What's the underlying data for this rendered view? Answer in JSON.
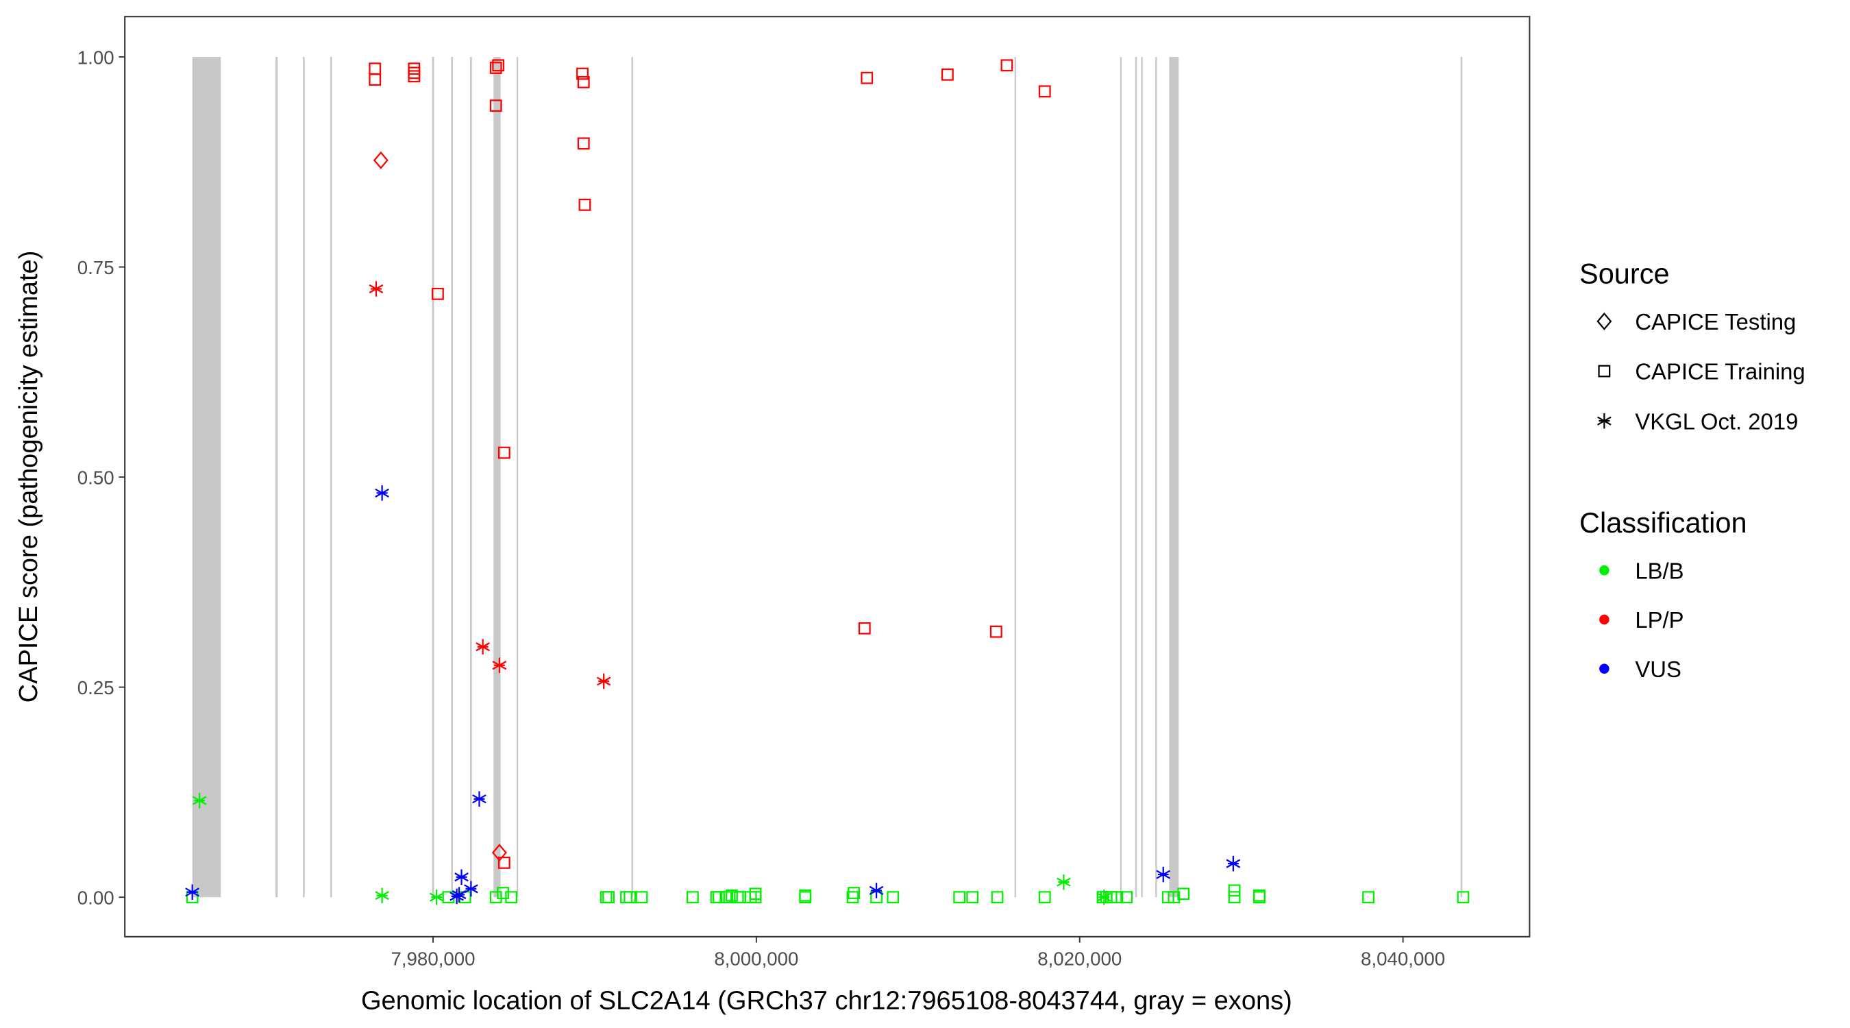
{
  "chart_data": {
    "type": "scatter",
    "xlabel": "Genomic location of SLC2A14 (GRCh37 chr12:7965108-8043744, gray = exons)",
    "ylabel": "CAPICE score (pathogenicity estimate)",
    "xlim": [
      7960934,
      8047830
    ],
    "ylim": [
      -0.047,
      1.048
    ],
    "x_ticks": [
      7980000,
      8000000,
      8020000,
      8040000
    ],
    "x_tick_labels": [
      "7,980,000",
      "8,000,000",
      "8,020,000",
      "8,040,000"
    ],
    "y_ticks": [
      0,
      0.25,
      0.5,
      0.75,
      1.0
    ],
    "y_tick_labels": [
      "0.00",
      "0.25",
      "0.50",
      "0.75",
      "1.00"
    ],
    "grid": false,
    "legend_placement": "right",
    "legend": {
      "source_title": "Source",
      "sources": [
        {
          "key": "testing",
          "label": "CAPICE Testing",
          "shape": "diamond"
        },
        {
          "key": "training",
          "label": "CAPICE Training",
          "shape": "square"
        },
        {
          "key": "vkgl",
          "label": "VKGL Oct. 2019",
          "shape": "asterisk"
        }
      ],
      "class_title": "Classification",
      "classes": [
        {
          "key": "LB/B",
          "label": "LB/B",
          "color": "#00ee00"
        },
        {
          "key": "LP/P",
          "label": "LP/P",
          "color": "#ff0000"
        },
        {
          "key": "VUS",
          "label": "VUS",
          "color": "#0000ff"
        }
      ]
    },
    "exons": [
      [
        7965108,
        7966874
      ],
      [
        7970250,
        7970390
      ],
      [
        7971950,
        7972060
      ],
      [
        7973640,
        7973750
      ],
      [
        7979940,
        7980060
      ],
      [
        7981120,
        7981230
      ],
      [
        7982290,
        7982400
      ],
      [
        7983740,
        7984180
      ],
      [
        7985170,
        7985240
      ],
      [
        7992270,
        7992370
      ],
      [
        8015970,
        8016040
      ],
      [
        8022500,
        8022560
      ],
      [
        8023430,
        8023540
      ],
      [
        8023800,
        8023900
      ],
      [
        8024680,
        8024780
      ],
      [
        8025538,
        8026125
      ],
      [
        8043560,
        8043670
      ]
    ],
    "points": [
      [
        7976407,
        0.986,
        "training",
        "LP/P"
      ],
      [
        7976407,
        0.973,
        "training",
        "LP/P"
      ],
      [
        7978827,
        0.986,
        "training",
        "LP/P"
      ],
      [
        7978827,
        0.981,
        "training",
        "LP/P"
      ],
      [
        7978827,
        0.977,
        "training",
        "LP/P"
      ],
      [
        7983887,
        0.987,
        "training",
        "LP/P"
      ],
      [
        7984033,
        0.99,
        "training",
        "LP/P"
      ],
      [
        7983887,
        0.942,
        "training",
        "LP/P"
      ],
      [
        7989240,
        0.98,
        "training",
        "LP/P"
      ],
      [
        7989313,
        0.97,
        "training",
        "LP/P"
      ],
      [
        7989313,
        0.897,
        "training",
        "LP/P"
      ],
      [
        7989386,
        0.824,
        "training",
        "LP/P"
      ],
      [
        7980293,
        0.718,
        "training",
        "LP/P"
      ],
      [
        7984400,
        0.529,
        "training",
        "LP/P"
      ],
      [
        7984400,
        0.041,
        "training",
        "LP/P"
      ],
      [
        8006839,
        0.975,
        "training",
        "LP/P"
      ],
      [
        8011826,
        0.979,
        "training",
        "LP/P"
      ],
      [
        8015493,
        0.99,
        "training",
        "LP/P"
      ],
      [
        8017839,
        0.959,
        "training",
        "LP/P"
      ],
      [
        8006693,
        0.32,
        "training",
        "LP/P"
      ],
      [
        8014832,
        0.316,
        "training",
        "LP/P"
      ],
      [
        7976773,
        0.877,
        "testing",
        "LP/P"
      ],
      [
        7984107,
        0.053,
        "testing",
        "LP/P"
      ],
      [
        7976480,
        0.724,
        "vkgl",
        "LP/P"
      ],
      [
        7983080,
        0.298,
        "vkgl",
        "LP/P"
      ],
      [
        7984107,
        0.276,
        "vkgl",
        "LP/P"
      ],
      [
        7990560,
        0.257,
        "vkgl",
        "LP/P"
      ],
      [
        7965108,
        0.0,
        "training",
        "LB/B"
      ],
      [
        7980953,
        0.0,
        "training",
        "LB/B"
      ],
      [
        7981980,
        0.0,
        "training",
        "LB/B"
      ],
      [
        7983887,
        0.0,
        "training",
        "LB/B"
      ],
      [
        7984327,
        0.005,
        "training",
        "LB/B"
      ],
      [
        7984840,
        0.0,
        "training",
        "LB/B"
      ],
      [
        7990706,
        0.0,
        "training",
        "LB/B"
      ],
      [
        7990853,
        0.0,
        "training",
        "LB/B"
      ],
      [
        7991953,
        0.0,
        "training",
        "LB/B"
      ],
      [
        7992173,
        0.0,
        "training",
        "LB/B"
      ],
      [
        7992906,
        0.0,
        "training",
        "LB/B"
      ],
      [
        7996059,
        0.0,
        "training",
        "LB/B"
      ],
      [
        7997526,
        0.0,
        "training",
        "LB/B"
      ],
      [
        7997673,
        0.0,
        "training",
        "LB/B"
      ],
      [
        7998113,
        0.0,
        "training",
        "LB/B"
      ],
      [
        7998479,
        0.002,
        "training",
        "LB/B"
      ],
      [
        7998846,
        0.0,
        "training",
        "LB/B"
      ],
      [
        7998993,
        0.0,
        "training",
        "LB/B"
      ],
      [
        7999653,
        0.0,
        "training",
        "LB/B"
      ],
      [
        7999946,
        0.004,
        "training",
        "LB/B"
      ],
      [
        7999946,
        0.0,
        "training",
        "LB/B"
      ],
      [
        8003026,
        0.0,
        "training",
        "LB/B"
      ],
      [
        8003026,
        0.002,
        "training",
        "LB/B"
      ],
      [
        8005959,
        0.0,
        "training",
        "LB/B"
      ],
      [
        8006032,
        0.005,
        "training",
        "LB/B"
      ],
      [
        8007426,
        0.0,
        "training",
        "LB/B"
      ],
      [
        8008452,
        0.0,
        "training",
        "LB/B"
      ],
      [
        8012559,
        0.0,
        "training",
        "LB/B"
      ],
      [
        8013366,
        0.0,
        "training",
        "LB/B"
      ],
      [
        8014905,
        0.0,
        "training",
        "LB/B"
      ],
      [
        8017839,
        0.0,
        "training",
        "LB/B"
      ],
      [
        8021432,
        0.0,
        "training",
        "LB/B"
      ],
      [
        8021652,
        0.0,
        "training",
        "LB/B"
      ],
      [
        8021946,
        0.0,
        "training",
        "LB/B"
      ],
      [
        8022312,
        0.0,
        "training",
        "LB/B"
      ],
      [
        8022899,
        0.0,
        "training",
        "LB/B"
      ],
      [
        8025466,
        0.0,
        "training",
        "LB/B"
      ],
      [
        8025833,
        0.0,
        "training",
        "LB/B"
      ],
      [
        8026419,
        0.004,
        "training",
        "LB/B"
      ],
      [
        8029572,
        0.008,
        "training",
        "LB/B"
      ],
      [
        8029572,
        0.0,
        "training",
        "LB/B"
      ],
      [
        8031112,
        0.002,
        "training",
        "LB/B"
      ],
      [
        8031112,
        0.0,
        "training",
        "LB/B"
      ],
      [
        8037858,
        0.0,
        "training",
        "LB/B"
      ],
      [
        8043724,
        0.0,
        "training",
        "LB/B"
      ],
      [
        7965554,
        0.115,
        "vkgl",
        "LB/B"
      ],
      [
        7976847,
        0.002,
        "vkgl",
        "LB/B"
      ],
      [
        7980220,
        0.0,
        "vkgl",
        "LB/B"
      ],
      [
        8019013,
        0.018,
        "vkgl",
        "LB/B"
      ],
      [
        8021506,
        0.0,
        "vkgl",
        "LB/B"
      ],
      [
        7965108,
        0.006,
        "vkgl",
        "VUS"
      ],
      [
        7976847,
        0.481,
        "vkgl",
        "VUS"
      ],
      [
        7982860,
        0.117,
        "vkgl",
        "VUS"
      ],
      [
        7981760,
        0.024,
        "vkgl",
        "VUS"
      ],
      [
        7981467,
        0.001,
        "vkgl",
        "VUS"
      ],
      [
        7981613,
        0.003,
        "vkgl",
        "VUS"
      ],
      [
        7982347,
        0.01,
        "vkgl",
        "VUS"
      ],
      [
        8007426,
        0.008,
        "vkgl",
        "VUS"
      ],
      [
        8025171,
        0.027,
        "vkgl",
        "VUS"
      ],
      [
        8029500,
        0.04,
        "vkgl",
        "VUS"
      ]
    ]
  }
}
